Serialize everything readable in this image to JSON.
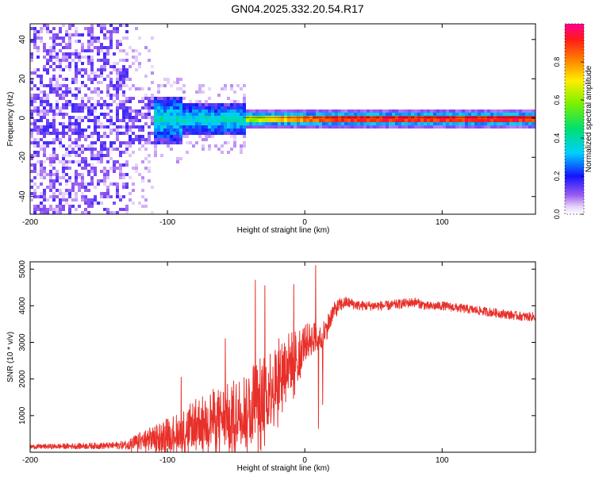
{
  "figure_title": "GN04.2025.332.20.54.R17",
  "chart_data": [
    {
      "type": "heatmap",
      "title": "GN04.2025.332.20.54.R17",
      "xlabel": "Height of straight line (km)",
      "ylabel": "Frequency (Hz)",
      "xlim": [
        -200,
        168
      ],
      "ylim": [
        -49,
        48
      ],
      "x_ticks": [
        -200,
        -100,
        0,
        100
      ],
      "x_tick_labels": [
        "-200",
        "-100",
        "0",
        "100"
      ],
      "y_ticks": [
        -40,
        -20,
        0,
        20,
        40
      ],
      "y_tick_labels": [
        "-40",
        "-20",
        "0",
        "20",
        "40"
      ],
      "colorbar": {
        "label": "Normalized spectral amplitude",
        "range": [
          0,
          1
        ],
        "ticks": [
          0,
          0.2,
          0.4,
          0.6,
          0.8
        ],
        "tick_labels": [
          "0.0",
          "0.2",
          "0.4",
          "0.6",
          "0.8"
        ],
        "colormap": "rainbow (white-violet-blue-cyan-green-yellow-red-magenta)"
      },
      "regions": [
        {
          "x_range": [
            -200,
            -130
          ],
          "freq_range": [
            -49,
            48
          ],
          "amplitude": "0.05-0.2 (broadband noise)"
        },
        {
          "x_range": [
            -130,
            -45
          ],
          "freq_range": [
            -12,
            10
          ],
          "amplitude": "0.2-0.45"
        },
        {
          "x_range": [
            -45,
            168
          ],
          "freq_center": 0,
          "freq_width": 3,
          "amplitude": "0.6-0.95"
        }
      ]
    },
    {
      "type": "line",
      "xlabel": "Height of straight line (km)",
      "ylabel": "SNR (10 * v/v)",
      "xlim": [
        -200,
        168
      ],
      "ylim": [
        0,
        5200
      ],
      "x_ticks": [
        -200,
        -100,
        0,
        100
      ],
      "x_tick_labels": [
        "-200",
        "-100",
        "0",
        "100"
      ],
      "y_ticks": [
        1000,
        2000,
        3000,
        4000,
        5000
      ],
      "y_tick_labels": [
        "1000",
        "2000",
        "3000",
        "4000",
        "5000"
      ],
      "series": [
        {
          "name": "SNR",
          "color": "#e8302a",
          "x": [
            -200,
            -180,
            -160,
            -140,
            -130,
            -120,
            -110,
            -100,
            -90,
            -80,
            -70,
            -60,
            -50,
            -40,
            -35,
            -30,
            -25,
            -20,
            -15,
            -10,
            -5,
            0,
            5,
            10,
            15,
            20,
            25,
            30,
            40,
            50,
            60,
            70,
            80,
            90,
            100,
            110,
            120,
            130,
            140,
            150,
            160,
            168
          ],
          "y": [
            150,
            160,
            170,
            180,
            200,
            300,
            380,
            500,
            600,
            800,
            900,
            1000,
            1100,
            1300,
            1500,
            1600,
            1800,
            2000,
            2300,
            2500,
            2700,
            3000,
            3100,
            3200,
            3300,
            3800,
            4000,
            4100,
            4000,
            4000,
            4000,
            4050,
            4100,
            3980,
            4000,
            3950,
            3900,
            3850,
            3800,
            3750,
            3700,
            3700
          ],
          "spread": [
            60,
            70,
            80,
            90,
            120,
            250,
            350,
            450,
            500,
            650,
            800,
            800,
            900,
            1100,
            1100,
            1100,
            1100,
            1050,
            1000,
            800,
            700,
            500,
            450,
            400,
            350,
            250,
            200,
            150,
            130,
            130,
            130,
            130,
            130,
            120,
            120,
            120,
            120,
            120,
            120,
            120,
            120,
            120
          ]
        }
      ],
      "peaks": [
        {
          "x": -90,
          "y": 2050
        },
        {
          "x": -58,
          "y": 3100
        },
        {
          "x": -36,
          "y": 4700
        },
        {
          "x": -29,
          "y": 4550
        },
        {
          "x": -8,
          "y": 4580
        },
        {
          "x": 8,
          "y": 5100
        },
        {
          "x": 13,
          "y": 4550
        }
      ],
      "dips": [
        {
          "x": -43,
          "y": 150
        },
        {
          "x": -32,
          "y": 40
        },
        {
          "x": 10,
          "y": 650
        },
        {
          "x": 13,
          "y": 1300
        }
      ]
    }
  ]
}
